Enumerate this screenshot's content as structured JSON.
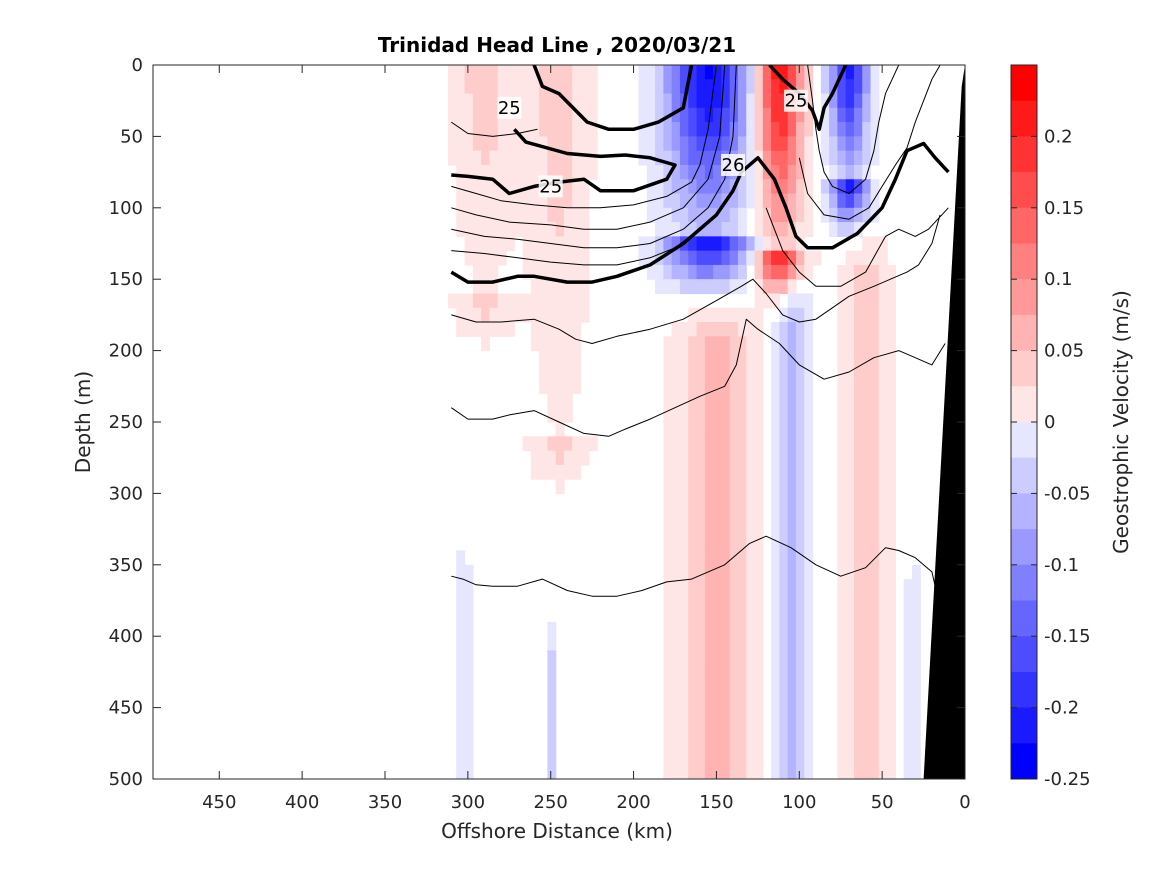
{
  "chart_data": {
    "type": "contour",
    "title": "Trinidad Head Line , 2020/03/21",
    "xlabel": "Offshore Distance (km)",
    "ylabel": "Depth (m)",
    "xlim": [
      490,
      0
    ],
    "ylim": [
      0,
      500
    ],
    "x_reversed": true,
    "y_reversed": true,
    "xticks": [
      "450",
      "400",
      "350",
      "300",
      "250",
      "200",
      "150",
      "100",
      "50",
      "0"
    ],
    "yticks": [
      "0",
      "50",
      "100",
      "150",
      "200",
      "250",
      "300",
      "350",
      "400",
      "450",
      "500"
    ],
    "colorbar": {
      "label": "Geostrophic Velocity (m/s)",
      "range": [
        -0.25,
        0.25
      ],
      "step": 0.025,
      "tick_labels": [
        "0.2",
        "0.15",
        "0.1",
        "0.05",
        "0",
        "-0.05",
        "-0.1",
        "-0.15",
        "-0.2",
        "-0.25"
      ],
      "negative_color": "#0000ff",
      "positive_color": "#ff0000",
      "zero_color": "#ffffff"
    },
    "velocity_features": [
      {
        "x_center": 155,
        "depth_top": 0,
        "depth_bottom": 120,
        "width_km": 55,
        "peak": -0.24
      },
      {
        "x_center": 112,
        "depth_top": 0,
        "depth_bottom": 130,
        "width_km": 30,
        "peak": 0.24
      },
      {
        "x_center": 70,
        "depth_top": 0,
        "depth_bottom": 80,
        "width_km": 25,
        "peak": -0.22
      },
      {
        "x_center": 245,
        "depth_top": 0,
        "depth_bottom": 260,
        "width_km": 40,
        "peak": 0.05
      },
      {
        "x_center": 290,
        "depth_top": 0,
        "depth_bottom": 160,
        "width_km": 40,
        "peak": 0.05
      },
      {
        "x_center": 150,
        "depth_top": 200,
        "depth_bottom": 500,
        "width_km": 50,
        "peak": 0.07
      },
      {
        "x_center": 105,
        "depth_top": 170,
        "depth_bottom": 500,
        "width_km": 25,
        "peak": -0.07
      },
      {
        "x_center": 60,
        "depth_top": 150,
        "depth_bottom": 500,
        "width_km": 30,
        "peak": 0.05
      },
      {
        "x_center": 303,
        "depth_top": 370,
        "depth_bottom": 500,
        "width_km": 10,
        "peak": -0.04
      },
      {
        "x_center": 250,
        "depth_top": 420,
        "depth_bottom": 500,
        "width_km": 8,
        "peak": -0.04
      },
      {
        "x_center": 32,
        "depth_top": 380,
        "depth_bottom": 500,
        "width_km": 15,
        "peak": -0.03
      }
    ],
    "isopycnals": [
      {
        "label": "25",
        "bold": true,
        "label_at": [
          275,
          30
        ],
        "points": [
          [
            260,
            0
          ],
          [
            255,
            15
          ],
          [
            245,
            20
          ],
          [
            228,
            40
          ],
          [
            215,
            45
          ],
          [
            200,
            45
          ],
          [
            185,
            40
          ],
          [
            170,
            30
          ],
          [
            165,
            0
          ]
        ]
      },
      {
        "label": "25",
        "bold": true,
        "label_at": [
          250,
          85
        ],
        "points": [
          [
            310,
            77
          ],
          [
            300,
            78
          ],
          [
            285,
            80
          ],
          [
            275,
            90
          ],
          [
            260,
            85
          ],
          [
            245,
            82
          ],
          [
            230,
            80
          ],
          [
            220,
            88
          ],
          [
            200,
            88
          ],
          [
            180,
            80
          ],
          [
            175,
            70
          ],
          [
            190,
            65
          ],
          [
            205,
            63
          ],
          [
            220,
            64
          ],
          [
            240,
            62
          ],
          [
            265,
            54
          ],
          [
            272,
            45
          ]
        ]
      },
      {
        "label": "25",
        "bold": true,
        "label_at": [
          102,
          25
        ],
        "points": [
          [
            118,
            0
          ],
          [
            110,
            10
          ],
          [
            100,
            20
          ],
          [
            92,
            32
          ],
          [
            88,
            45
          ],
          [
            85,
            30
          ],
          [
            80,
            20
          ],
          [
            72,
            0
          ]
        ]
      },
      {
        "label": "26",
        "bold": true,
        "label_at": [
          140,
          70
        ],
        "points": [
          [
            310,
            145
          ],
          [
            300,
            152
          ],
          [
            285,
            152
          ],
          [
            270,
            148
          ],
          [
            260,
            148
          ],
          [
            240,
            152
          ],
          [
            225,
            152
          ],
          [
            210,
            148
          ],
          [
            190,
            140
          ],
          [
            170,
            125
          ],
          [
            150,
            105
          ],
          [
            140,
            88
          ],
          [
            135,
            75
          ],
          [
            125,
            65
          ],
          [
            115,
            80
          ],
          [
            108,
            100
          ],
          [
            102,
            120
          ],
          [
            95,
            128
          ],
          [
            80,
            128
          ],
          [
            65,
            118
          ],
          [
            50,
            100
          ],
          [
            42,
            80
          ],
          [
            35,
            60
          ],
          [
            25,
            55
          ],
          [
            18,
            65
          ],
          [
            10,
            75
          ]
        ]
      },
      {
        "label": "",
        "bold": false,
        "points": [
          [
            310,
            40
          ],
          [
            300,
            48
          ],
          [
            285,
            50
          ],
          [
            270,
            48
          ],
          [
            258,
            45
          ]
        ]
      },
      {
        "label": "",
        "bold": false,
        "points": [
          [
            310,
            85
          ],
          [
            295,
            90
          ],
          [
            280,
            95
          ],
          [
            260,
            98
          ],
          [
            240,
            100
          ],
          [
            220,
            100
          ],
          [
            200,
            98
          ],
          [
            180,
            92
          ],
          [
            165,
            82
          ],
          [
            160,
            70
          ],
          [
            155,
            45
          ],
          [
            150,
            0
          ]
        ]
      },
      {
        "label": "",
        "bold": false,
        "points": [
          [
            310,
            100
          ],
          [
            295,
            105
          ],
          [
            275,
            110
          ],
          [
            250,
            112
          ],
          [
            230,
            115
          ],
          [
            210,
            115
          ],
          [
            190,
            110
          ],
          [
            170,
            100
          ],
          [
            155,
            80
          ],
          [
            148,
            50
          ],
          [
            145,
            0
          ]
        ]
      },
      {
        "label": "",
        "bold": false,
        "points": [
          [
            310,
            115
          ],
          [
            290,
            120
          ],
          [
            270,
            122
          ],
          [
            250,
            125
          ],
          [
            230,
            128
          ],
          [
            210,
            128
          ],
          [
            190,
            125
          ],
          [
            170,
            115
          ],
          [
            155,
            100
          ],
          [
            145,
            80
          ],
          [
            140,
            50
          ],
          [
            138,
            0
          ]
        ]
      },
      {
        "label": "",
        "bold": false,
        "points": [
          [
            310,
            130
          ],
          [
            290,
            132
          ],
          [
            270,
            135
          ],
          [
            250,
            138
          ],
          [
            230,
            140
          ],
          [
            210,
            140
          ],
          [
            190,
            135
          ],
          [
            175,
            128
          ],
          [
            160,
            115
          ]
        ]
      },
      {
        "label": "",
        "bold": false,
        "points": [
          [
            95,
            0
          ],
          [
            92,
            25
          ],
          [
            90,
            45
          ],
          [
            88,
            60
          ],
          [
            85,
            75
          ],
          [
            80,
            85
          ],
          [
            70,
            90
          ],
          [
            60,
            80
          ],
          [
            55,
            60
          ],
          [
            52,
            40
          ],
          [
            48,
            20
          ],
          [
            40,
            0
          ]
        ]
      },
      {
        "label": "",
        "bold": false,
        "points": [
          [
            100,
            65
          ],
          [
            95,
            90
          ],
          [
            85,
            105
          ],
          [
            70,
            108
          ],
          [
            58,
            100
          ],
          [
            50,
            85
          ],
          [
            42,
            70
          ],
          [
            35,
            58
          ],
          [
            30,
            40
          ],
          [
            20,
            10
          ],
          [
            15,
            0
          ]
        ]
      },
      {
        "label": "",
        "bold": false,
        "points": [
          [
            120,
            100
          ],
          [
            110,
            130
          ],
          [
            100,
            145
          ],
          [
            90,
            155
          ],
          [
            75,
            155
          ],
          [
            60,
            145
          ],
          [
            48,
            120
          ],
          [
            40,
            115
          ],
          [
            30,
            120
          ],
          [
            22,
            115
          ],
          [
            10,
            100
          ]
        ]
      },
      {
        "label": "",
        "bold": false,
        "points": [
          [
            310,
            175
          ],
          [
            295,
            180
          ],
          [
            280,
            180
          ],
          [
            260,
            178
          ],
          [
            245,
            185
          ],
          [
            235,
            192
          ],
          [
            225,
            195
          ],
          [
            210,
            190
          ],
          [
            190,
            185
          ],
          [
            170,
            178
          ],
          [
            150,
            165
          ],
          [
            135,
            155
          ],
          [
            128,
            150
          ],
          [
            120,
            160
          ],
          [
            110,
            175
          ],
          [
            100,
            180
          ],
          [
            90,
            178
          ],
          [
            80,
            170
          ],
          [
            70,
            162
          ],
          [
            55,
            155
          ],
          [
            45,
            150
          ],
          [
            35,
            145
          ],
          [
            28,
            140
          ],
          [
            20,
            125
          ],
          [
            15,
            105
          ]
        ]
      },
      {
        "label": "",
        "bold": false,
        "points": [
          [
            310,
            240
          ],
          [
            300,
            248
          ],
          [
            285,
            248
          ],
          [
            275,
            245
          ],
          [
            260,
            242
          ],
          [
            245,
            250
          ],
          [
            230,
            258
          ],
          [
            215,
            260
          ],
          [
            205,
            255
          ],
          [
            190,
            248
          ],
          [
            175,
            240
          ],
          [
            160,
            232
          ],
          [
            145,
            225
          ],
          [
            138,
            210
          ],
          [
            132,
            178
          ],
          [
            125,
            185
          ],
          [
            112,
            195
          ],
          [
            100,
            210
          ],
          [
            85,
            220
          ],
          [
            70,
            215
          ],
          [
            55,
            205
          ],
          [
            40,
            200
          ],
          [
            30,
            205
          ],
          [
            20,
            210
          ],
          [
            12,
            195
          ]
        ]
      },
      {
        "label": "",
        "bold": false,
        "points": [
          [
            310,
            358
          ],
          [
            303,
            360
          ],
          [
            295,
            364
          ],
          [
            285,
            365
          ],
          [
            270,
            365
          ],
          [
            255,
            360
          ],
          [
            240,
            368
          ],
          [
            225,
            372
          ],
          [
            210,
            372
          ],
          [
            195,
            368
          ],
          [
            180,
            362
          ],
          [
            165,
            360
          ],
          [
            145,
            350
          ],
          [
            130,
            335
          ],
          [
            120,
            330
          ],
          [
            105,
            338
          ],
          [
            90,
            350
          ],
          [
            75,
            358
          ],
          [
            60,
            352
          ],
          [
            48,
            338
          ],
          [
            40,
            340
          ],
          [
            30,
            345
          ],
          [
            20,
            355
          ],
          [
            15,
            380
          ],
          [
            10,
            390
          ]
        ]
      }
    ],
    "bathymetry_color": "#000000"
  }
}
